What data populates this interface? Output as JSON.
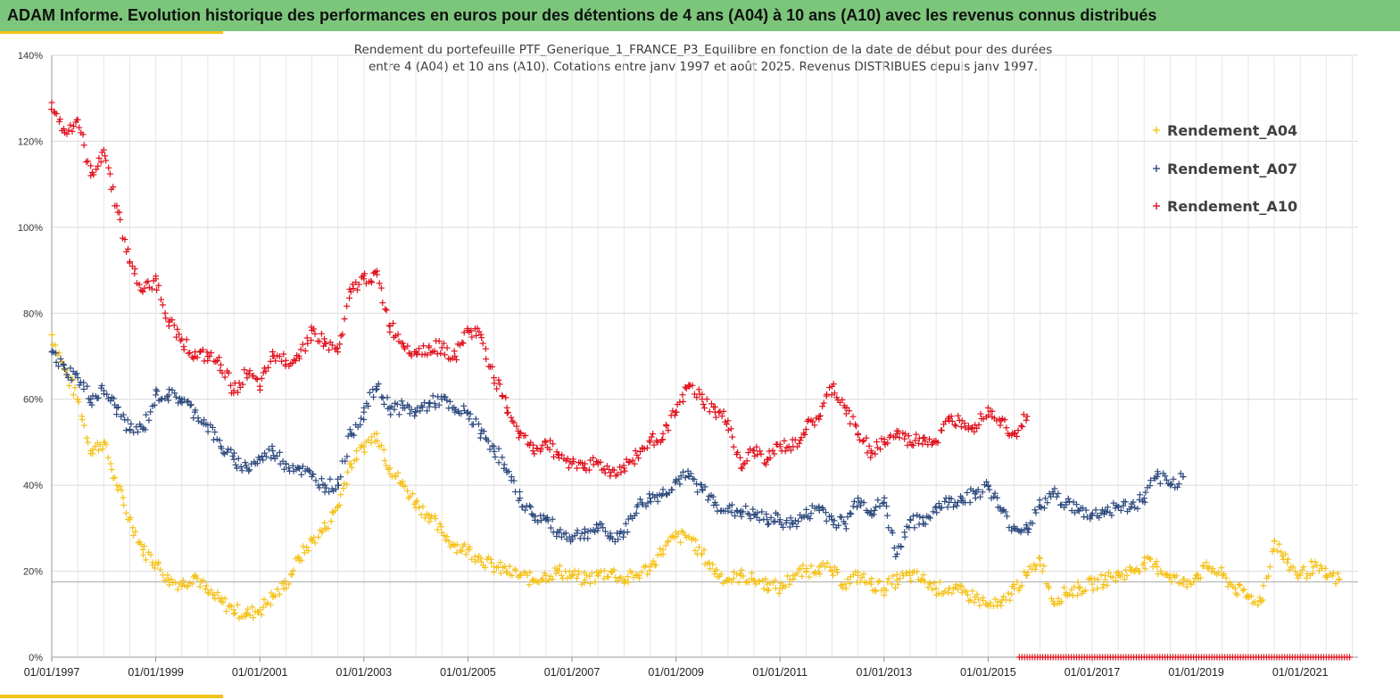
{
  "banner": {
    "title": "ADAM Informe. Evolution historique des performances en euros pour des détentions de 4 ans (A04) à 10 ans (A10) avec les revenus connus distribués"
  },
  "colors": {
    "banner_green": "#7cc67b",
    "banner_yellow": "#f2c31b",
    "A04": "#f5c21b",
    "A07": "#2e4a7e",
    "A10": "#e0101c"
  },
  "chart_data": {
    "type": "scatter",
    "subtitle_line1": "Rendement du portefeuille PTF_Generique_1_FRANCE_P3_Equilibre  en fonction de la date de début pour des durées",
    "subtitle_line2": "entre 4 (A04) et 10 ans (A10). Cotations entre janv 1997 et août 2025. Revenus DISTRIBUES depuis janv 1997.",
    "x_tick_labels": [
      "01/01/1997",
      "01/01/1999",
      "01/01/2001",
      "01/01/2003",
      "01/01/2005",
      "01/01/2007",
      "01/01/2009",
      "01/01/2011",
      "01/01/2013",
      "01/01/2015",
      "01/01/2017",
      "01/01/2019",
      "01/01/2021"
    ],
    "x_tick_years": [
      1997,
      1999,
      2001,
      2003,
      2005,
      2007,
      2009,
      2011,
      2013,
      2015,
      2017,
      2019,
      2021
    ],
    "xlim": [
      1997.0,
      2022.0
    ],
    "y_tick_labels": [
      "0%",
      "20%",
      "40%",
      "60%",
      "80%",
      "100%",
      "120%",
      "140%"
    ],
    "y_tick_values": [
      0,
      20,
      40,
      60,
      80,
      100,
      120,
      140
    ],
    "ylim": [
      0,
      140
    ],
    "grid": "vertical and horizontal",
    "legend_position": "top-right",
    "reference_line_y": 17.5,
    "series": [
      {
        "name": "Rendement_A04",
        "key": "A04",
        "points": [
          [
            1997.0,
            75
          ],
          [
            1997.25,
            67
          ],
          [
            1997.5,
            60
          ],
          [
            1997.75,
            48
          ],
          [
            1998.0,
            50
          ],
          [
            1998.25,
            40
          ],
          [
            1998.5,
            32
          ],
          [
            1998.75,
            25
          ],
          [
            1999.0,
            22
          ],
          [
            1999.25,
            18
          ],
          [
            1999.5,
            17
          ],
          [
            1999.75,
            19
          ],
          [
            2000.0,
            15
          ],
          [
            2000.25,
            13
          ],
          [
            2000.5,
            11
          ],
          [
            2000.75,
            10
          ],
          [
            2001.0,
            11
          ],
          [
            2001.25,
            14
          ],
          [
            2001.5,
            17
          ],
          [
            2001.75,
            23
          ],
          [
            2002.0,
            27
          ],
          [
            2002.25,
            30
          ],
          [
            2002.5,
            35
          ],
          [
            2002.75,
            45
          ],
          [
            2003.0,
            49
          ],
          [
            2003.25,
            52
          ],
          [
            2003.5,
            44
          ],
          [
            2003.75,
            40
          ],
          [
            2004.0,
            36
          ],
          [
            2004.25,
            33
          ],
          [
            2004.5,
            29
          ],
          [
            2004.75,
            26
          ],
          [
            2005.0,
            25
          ],
          [
            2005.25,
            23
          ],
          [
            2005.5,
            21
          ],
          [
            2005.75,
            20
          ],
          [
            2006.0,
            19
          ],
          [
            2006.25,
            18
          ],
          [
            2006.5,
            19
          ],
          [
            2006.75,
            20
          ],
          [
            2007.0,
            19
          ],
          [
            2007.25,
            18
          ],
          [
            2007.5,
            19
          ],
          [
            2007.75,
            20
          ],
          [
            2008.0,
            18
          ],
          [
            2008.25,
            19
          ],
          [
            2008.5,
            21
          ],
          [
            2008.75,
            25
          ],
          [
            2009.0,
            28
          ],
          [
            2009.25,
            28
          ],
          [
            2009.5,
            24
          ],
          [
            2009.75,
            20
          ],
          [
            2010.0,
            18
          ],
          [
            2010.25,
            19
          ],
          [
            2010.5,
            18
          ],
          [
            2010.75,
            17
          ],
          [
            2011.0,
            16
          ],
          [
            2011.25,
            19
          ],
          [
            2011.5,
            20
          ],
          [
            2011.75,
            21
          ],
          [
            2012.0,
            20
          ],
          [
            2012.25,
            17
          ],
          [
            2012.5,
            19
          ],
          [
            2012.75,
            17
          ],
          [
            2013.0,
            16
          ],
          [
            2013.25,
            18
          ],
          [
            2013.5,
            19
          ],
          [
            2013.75,
            18
          ],
          [
            2014.0,
            16
          ],
          [
            2014.25,
            16
          ],
          [
            2014.5,
            15
          ],
          [
            2014.75,
            14
          ],
          [
            2015.0,
            12
          ],
          [
            2015.25,
            12
          ],
          [
            2015.5,
            16
          ],
          [
            2015.75,
            19
          ],
          [
            2016.0,
            23
          ],
          [
            2016.25,
            13
          ],
          [
            2016.5,
            15
          ],
          [
            2016.75,
            16
          ],
          [
            2017.0,
            17
          ],
          [
            2017.25,
            18
          ],
          [
            2017.5,
            19
          ],
          [
            2017.75,
            20
          ],
          [
            2018.0,
            22
          ],
          [
            2018.25,
            21
          ],
          [
            2018.5,
            19
          ],
          [
            2018.75,
            17
          ],
          [
            2019.0,
            19
          ],
          [
            2019.25,
            21
          ],
          [
            2019.5,
            19
          ],
          [
            2019.75,
            16
          ],
          [
            2020.0,
            14
          ],
          [
            2020.25,
            13
          ],
          [
            2020.5,
            27
          ],
          [
            2020.75,
            22
          ],
          [
            2021.0,
            19
          ],
          [
            2021.25,
            21
          ],
          [
            2021.5,
            19
          ],
          [
            2021.75,
            18
          ]
        ]
      },
      {
        "name": "Rendement_A07",
        "key": "A07",
        "points": [
          [
            1997.0,
            71
          ],
          [
            1997.25,
            67
          ],
          [
            1997.5,
            65
          ],
          [
            1997.75,
            60
          ],
          [
            1998.0,
            62
          ],
          [
            1998.25,
            58
          ],
          [
            1998.5,
            53
          ],
          [
            1998.75,
            53
          ],
          [
            1999.0,
            61
          ],
          [
            1999.25,
            61
          ],
          [
            1999.5,
            60
          ],
          [
            1999.75,
            57
          ],
          [
            2000.0,
            54
          ],
          [
            2000.25,
            49
          ],
          [
            2000.5,
            46
          ],
          [
            2000.75,
            44
          ],
          [
            2001.0,
            46
          ],
          [
            2001.25,
            48
          ],
          [
            2001.5,
            45
          ],
          [
            2001.75,
            44
          ],
          [
            2002.0,
            42
          ],
          [
            2002.25,
            40
          ],
          [
            2002.5,
            40
          ],
          [
            2002.75,
            52
          ],
          [
            2003.0,
            57
          ],
          [
            2003.25,
            63
          ],
          [
            2003.5,
            58
          ],
          [
            2003.75,
            58
          ],
          [
            2004.0,
            57
          ],
          [
            2004.25,
            59
          ],
          [
            2004.5,
            60
          ],
          [
            2004.75,
            57
          ],
          [
            2005.0,
            57
          ],
          [
            2005.25,
            52
          ],
          [
            2005.5,
            49
          ],
          [
            2005.75,
            43
          ],
          [
            2006.0,
            37
          ],
          [
            2006.25,
            33
          ],
          [
            2006.5,
            32
          ],
          [
            2006.75,
            29
          ],
          [
            2007.0,
            28
          ],
          [
            2007.25,
            29
          ],
          [
            2007.5,
            30
          ],
          [
            2007.75,
            28
          ],
          [
            2008.0,
            29
          ],
          [
            2008.25,
            35
          ],
          [
            2008.5,
            37
          ],
          [
            2008.75,
            38
          ],
          [
            2009.0,
            41
          ],
          [
            2009.25,
            42
          ],
          [
            2009.5,
            39
          ],
          [
            2009.75,
            36
          ],
          [
            2010.0,
            34
          ],
          [
            2010.25,
            34
          ],
          [
            2010.5,
            33
          ],
          [
            2010.75,
            32
          ],
          [
            2011.0,
            32
          ],
          [
            2011.25,
            31
          ],
          [
            2011.5,
            33
          ],
          [
            2011.75,
            35
          ],
          [
            2012.0,
            32
          ],
          [
            2012.25,
            31
          ],
          [
            2012.5,
            37
          ],
          [
            2012.75,
            34
          ],
          [
            2013.0,
            36
          ],
          [
            2013.25,
            24
          ],
          [
            2013.5,
            32
          ],
          [
            2013.75,
            31
          ],
          [
            2014.0,
            35
          ],
          [
            2014.25,
            36
          ],
          [
            2014.5,
            37
          ],
          [
            2014.75,
            38
          ],
          [
            2015.0,
            40
          ],
          [
            2015.25,
            34
          ],
          [
            2015.5,
            30
          ],
          [
            2015.75,
            30
          ],
          [
            2016.0,
            35
          ],
          [
            2016.25,
            38
          ],
          [
            2016.5,
            36
          ],
          [
            2016.75,
            34
          ],
          [
            2017.0,
            33
          ],
          [
            2017.25,
            34
          ],
          [
            2017.5,
            35
          ],
          [
            2017.75,
            35
          ],
          [
            2018.0,
            37
          ],
          [
            2018.25,
            42
          ],
          [
            2018.5,
            40
          ],
          [
            2018.75,
            42
          ]
        ]
      },
      {
        "name": "Rendement_A10",
        "key": "A10",
        "points": [
          [
            1997.0,
            129
          ],
          [
            1997.25,
            122
          ],
          [
            1997.5,
            125
          ],
          [
            1997.75,
            112
          ],
          [
            1998.0,
            118
          ],
          [
            1998.25,
            105
          ],
          [
            1998.5,
            92
          ],
          [
            1998.75,
            85
          ],
          [
            1999.0,
            88
          ],
          [
            1999.25,
            78
          ],
          [
            1999.5,
            74
          ],
          [
            1999.75,
            70
          ],
          [
            2000.0,
            70
          ],
          [
            2000.25,
            68
          ],
          [
            2000.5,
            62
          ],
          [
            2000.75,
            66
          ],
          [
            2001.0,
            63
          ],
          [
            2001.25,
            70
          ],
          [
            2001.5,
            69
          ],
          [
            2001.75,
            70
          ],
          [
            2002.0,
            76
          ],
          [
            2002.25,
            73
          ],
          [
            2002.5,
            71
          ],
          [
            2002.75,
            85
          ],
          [
            2003.0,
            88
          ],
          [
            2003.25,
            89
          ],
          [
            2003.5,
            77
          ],
          [
            2003.75,
            73
          ],
          [
            2004.0,
            71
          ],
          [
            2004.25,
            72
          ],
          [
            2004.5,
            72
          ],
          [
            2004.75,
            70
          ],
          [
            2005.0,
            76
          ],
          [
            2005.25,
            75
          ],
          [
            2005.5,
            65
          ],
          [
            2005.75,
            58
          ],
          [
            2006.0,
            52
          ],
          [
            2006.25,
            48
          ],
          [
            2006.5,
            50
          ],
          [
            2006.75,
            47
          ],
          [
            2007.0,
            45
          ],
          [
            2007.25,
            45
          ],
          [
            2007.5,
            45
          ],
          [
            2007.75,
            43
          ],
          [
            2008.0,
            44
          ],
          [
            2008.25,
            47
          ],
          [
            2008.5,
            50
          ],
          [
            2008.75,
            52
          ],
          [
            2009.0,
            57
          ],
          [
            2009.25,
            63
          ],
          [
            2009.5,
            60
          ],
          [
            2009.75,
            57
          ],
          [
            2010.0,
            55
          ],
          [
            2010.25,
            44
          ],
          [
            2010.5,
            48
          ],
          [
            2010.75,
            46
          ],
          [
            2011.0,
            49
          ],
          [
            2011.25,
            49
          ],
          [
            2011.5,
            53
          ],
          [
            2011.75,
            56
          ],
          [
            2012.0,
            63
          ],
          [
            2012.25,
            58
          ],
          [
            2012.5,
            52
          ],
          [
            2012.75,
            48
          ],
          [
            2013.0,
            50
          ],
          [
            2013.25,
            52
          ],
          [
            2013.5,
            50
          ],
          [
            2013.75,
            51
          ],
          [
            2014.0,
            50
          ],
          [
            2014.25,
            55
          ],
          [
            2014.5,
            55
          ],
          [
            2014.75,
            54
          ],
          [
            2015.0,
            58
          ],
          [
            2015.25,
            55
          ],
          [
            2015.5,
            52
          ],
          [
            2015.75,
            56
          ]
        ]
      }
    ],
    "zero_markers": {
      "series_key": "A10",
      "x_start": 2015.6,
      "x_end": 2021.95,
      "y": 0
    }
  }
}
